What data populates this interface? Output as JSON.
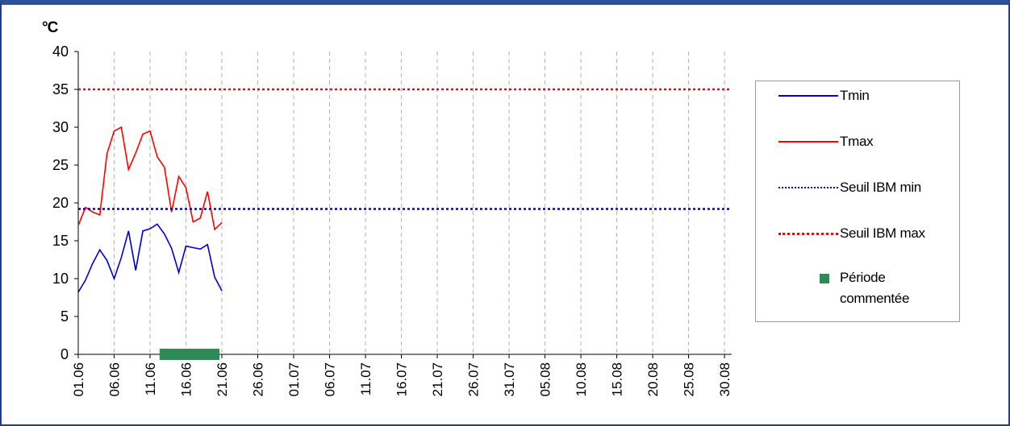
{
  "chart_data": {
    "type": "line",
    "ylabel": "°C",
    "ylim": [
      0,
      40
    ],
    "yticks": [
      "0",
      "5",
      "10",
      "15",
      "20",
      "25",
      "30",
      "35",
      "40"
    ],
    "xticks": [
      "01.06",
      "06.06",
      "11.06",
      "16.06",
      "21.06",
      "26.06",
      "01.07",
      "06.07",
      "11.07",
      "16.07",
      "21.07",
      "26.07",
      "31.07",
      "05.08",
      "10.08",
      "15.08",
      "20.08",
      "25.08",
      "30.08"
    ],
    "grid": "vertical dashed",
    "legend_position": "right",
    "series": [
      {
        "name": "Tmin",
        "color": "#0000cc",
        "style": "solid",
        "x": [
          "01.06",
          "02.06",
          "03.06",
          "04.06",
          "05.06",
          "06.06",
          "07.06",
          "08.06",
          "09.06",
          "10.06",
          "11.06",
          "12.06",
          "13.06",
          "14.06",
          "15.06",
          "16.06",
          "17.06",
          "18.06",
          "19.06",
          "20.06",
          "21.06"
        ],
        "values": [
          8.2,
          9.8,
          12.0,
          13.8,
          12.4,
          10.0,
          12.8,
          16.3,
          11.1,
          16.3,
          16.6,
          17.2,
          15.9,
          14.0,
          10.8,
          14.3,
          14.1,
          13.9,
          14.5,
          10.2,
          8.4
        ]
      },
      {
        "name": "Tmax",
        "color": "#ff0000",
        "style": "solid",
        "x": [
          "01.06",
          "02.06",
          "03.06",
          "04.06",
          "05.06",
          "06.06",
          "07.06",
          "08.06",
          "09.06",
          "10.06",
          "11.06",
          "12.06",
          "13.06",
          "14.06",
          "15.06",
          "16.06",
          "17.06",
          "18.06",
          "19.06",
          "20.06",
          "21.06"
        ],
        "values": [
          17.0,
          19.4,
          18.8,
          18.4,
          26.5,
          29.5,
          30.0,
          24.4,
          26.6,
          29.1,
          29.5,
          26.1,
          24.7,
          18.8,
          23.5,
          22.0,
          17.5,
          18.0,
          21.5,
          16.5,
          17.4
        ]
      },
      {
        "name": "Seuil IBM min",
        "color": "#0000cc",
        "style": "dotted",
        "value": 19.2
      },
      {
        "name": "Seuil IBM max",
        "color": "#ff0000",
        "style": "dotted",
        "value": 35.0
      },
      {
        "name": "Période commentée",
        "color": "#2e8b57",
        "style": "marker",
        "x_start": "13.06",
        "x_end": "20.06",
        "value": 0
      }
    ]
  }
}
